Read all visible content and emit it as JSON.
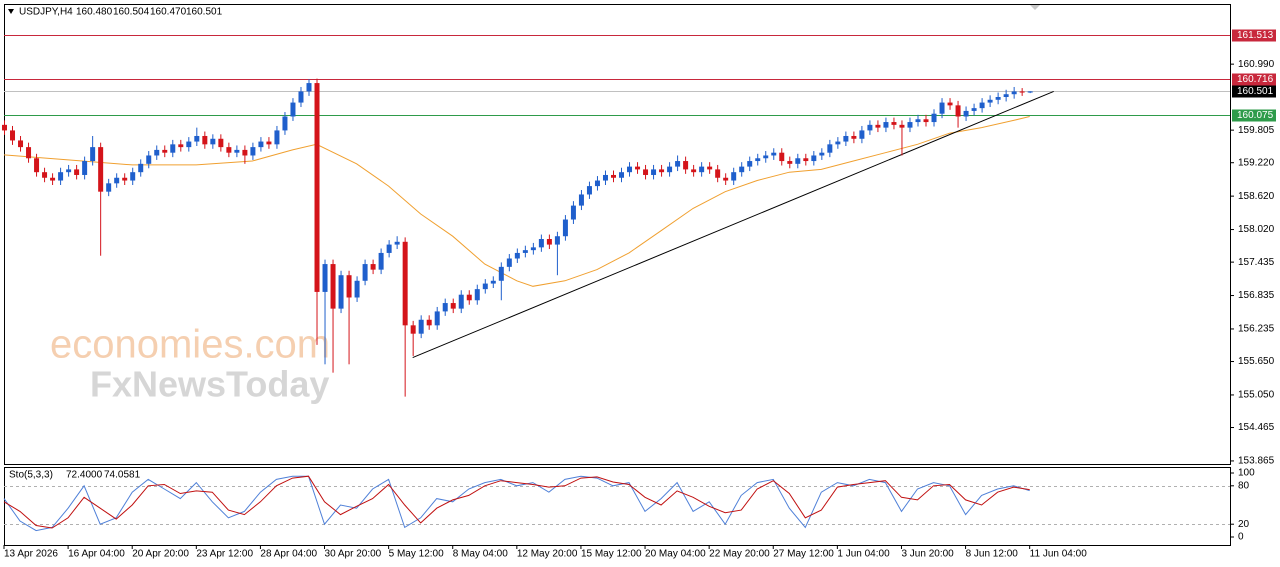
{
  "chart_data": [
    {
      "type": "candlestick",
      "title": "USDJPY,H4",
      "header_values": [
        "160.480",
        "160.504",
        "160.470",
        "160.501"
      ],
      "open": [
        159.9,
        159.8,
        159.62,
        159.5,
        159.3,
        159.05,
        158.95,
        158.9,
        159.05,
        159.1,
        159.0,
        159.25,
        159.5,
        158.7,
        158.85,
        158.95,
        158.9,
        159.05,
        159.2,
        159.35,
        159.45,
        159.4,
        159.55,
        159.5,
        159.6,
        159.7,
        159.55,
        159.65,
        159.5,
        159.4,
        159.45,
        159.35,
        159.5,
        159.6,
        159.55,
        159.8,
        160.05,
        160.3,
        160.5,
        160.65,
        156.9,
        157.4,
        156.6,
        157.2,
        156.8,
        157.1,
        157.4,
        157.3,
        157.6,
        157.75,
        157.8,
        156.3,
        156.15,
        156.4,
        156.3,
        156.55,
        156.7,
        156.6,
        156.85,
        156.75,
        156.95,
        157.05,
        157.1,
        157.35,
        157.5,
        157.6,
        157.65,
        157.7,
        157.85,
        157.75,
        157.9,
        158.2,
        158.45,
        158.65,
        158.8,
        158.9,
        159.0,
        158.95,
        159.05,
        159.15,
        159.1,
        159.0,
        159.1,
        159.05,
        159.15,
        159.25,
        159.1,
        159.05,
        159.15,
        159.1,
        158.95,
        158.9,
        159.05,
        159.15,
        159.25,
        159.3,
        159.35,
        159.4,
        159.25,
        159.2,
        159.3,
        159.25,
        159.35,
        159.4,
        159.55,
        159.6,
        159.7,
        159.65,
        159.8,
        159.9,
        159.85,
        159.95,
        159.9,
        159.85,
        159.95,
        160.0,
        159.95,
        160.1,
        160.3,
        160.25,
        160.05,
        160.15,
        160.2,
        160.3,
        160.35,
        160.4,
        160.45,
        160.5,
        160.48
      ],
      "high": [
        159.98,
        159.88,
        159.7,
        159.58,
        159.38,
        159.13,
        159.03,
        159.13,
        159.18,
        159.18,
        159.33,
        159.7,
        159.58,
        158.93,
        159.03,
        159.03,
        159.13,
        159.28,
        159.43,
        159.53,
        159.53,
        159.63,
        159.63,
        159.68,
        159.85,
        159.78,
        159.73,
        159.73,
        159.58,
        159.53,
        159.53,
        159.58,
        159.68,
        159.68,
        159.88,
        160.13,
        160.38,
        160.58,
        160.72,
        160.73,
        157.48,
        157.48,
        157.28,
        157.28,
        157.18,
        157.48,
        157.48,
        157.68,
        157.83,
        157.9,
        157.88,
        156.38,
        156.48,
        156.48,
        156.63,
        156.78,
        156.78,
        156.93,
        156.93,
        157.03,
        157.13,
        157.18,
        157.43,
        157.58,
        157.68,
        157.73,
        157.78,
        157.93,
        157.93,
        157.98,
        158.28,
        158.53,
        158.73,
        158.88,
        158.98,
        159.08,
        159.08,
        159.13,
        159.23,
        159.23,
        159.18,
        159.18,
        159.18,
        159.23,
        159.35,
        159.33,
        159.18,
        159.23,
        159.23,
        159.18,
        159.03,
        159.13,
        159.23,
        159.33,
        159.38,
        159.43,
        159.48,
        159.48,
        159.33,
        159.38,
        159.38,
        159.43,
        159.48,
        159.63,
        159.68,
        159.78,
        159.78,
        159.88,
        159.98,
        159.98,
        160.03,
        160.03,
        159.98,
        160.03,
        160.08,
        160.08,
        160.18,
        160.38,
        160.38,
        160.33,
        160.23,
        160.28,
        160.38,
        160.43,
        160.48,
        160.53,
        160.58,
        160.56,
        160.504
      ],
      "low": [
        159.72,
        159.54,
        159.42,
        159.22,
        158.97,
        158.87,
        158.82,
        158.82,
        158.97,
        158.92,
        158.92,
        159.17,
        157.55,
        158.62,
        158.77,
        158.82,
        158.82,
        158.97,
        159.12,
        159.27,
        159.32,
        159.32,
        159.42,
        159.42,
        159.52,
        159.47,
        159.47,
        159.42,
        159.32,
        159.32,
        159.2,
        159.27,
        159.42,
        159.47,
        159.47,
        159.72,
        159.97,
        160.22,
        160.42,
        155.95,
        155.6,
        155.45,
        156.52,
        155.6,
        156.72,
        157.02,
        157.22,
        157.22,
        157.52,
        157.67,
        155.02,
        155.75,
        156.07,
        156.22,
        156.22,
        156.47,
        156.52,
        156.52,
        156.67,
        156.67,
        156.87,
        156.97,
        156.75,
        157.27,
        157.42,
        157.52,
        157.57,
        157.62,
        157.67,
        157.2,
        157.82,
        158.12,
        158.37,
        158.57,
        158.72,
        158.82,
        158.87,
        158.87,
        158.97,
        159.02,
        158.92,
        158.92,
        158.97,
        158.97,
        159.07,
        159.02,
        158.97,
        158.97,
        159.02,
        158.87,
        158.82,
        158.82,
        158.97,
        159.07,
        159.17,
        159.22,
        159.27,
        159.17,
        159.12,
        159.12,
        159.17,
        159.17,
        159.27,
        159.32,
        159.47,
        159.52,
        159.57,
        159.57,
        159.72,
        159.77,
        159.77,
        159.82,
        159.35,
        159.77,
        159.87,
        159.87,
        159.87,
        160.02,
        160.17,
        159.85,
        159.97,
        160.07,
        160.12,
        160.22,
        160.27,
        160.32,
        160.37,
        160.42,
        160.47
      ],
      "close": [
        159.8,
        159.62,
        159.5,
        159.3,
        159.05,
        158.95,
        158.9,
        159.05,
        159.1,
        159.0,
        159.25,
        159.5,
        158.7,
        158.85,
        158.95,
        158.9,
        159.05,
        159.2,
        159.35,
        159.45,
        159.4,
        159.55,
        159.5,
        159.6,
        159.7,
        159.55,
        159.65,
        159.5,
        159.4,
        159.45,
        159.35,
        159.5,
        159.6,
        159.55,
        159.8,
        160.05,
        160.3,
        160.5,
        160.65,
        156.9,
        157.4,
        156.6,
        157.2,
        156.8,
        157.1,
        157.4,
        157.3,
        157.6,
        157.75,
        157.8,
        156.3,
        156.15,
        156.4,
        156.3,
        156.55,
        156.7,
        156.6,
        156.85,
        156.75,
        156.95,
        157.05,
        157.1,
        157.35,
        157.5,
        157.6,
        157.65,
        157.7,
        157.85,
        157.75,
        157.9,
        158.2,
        158.45,
        158.65,
        158.8,
        158.9,
        159.0,
        158.95,
        159.05,
        159.15,
        159.1,
        159.0,
        159.1,
        159.05,
        159.15,
        159.25,
        159.1,
        159.05,
        159.15,
        159.1,
        158.95,
        158.9,
        159.05,
        159.15,
        159.25,
        159.3,
        159.35,
        159.4,
        159.25,
        159.2,
        159.3,
        159.25,
        159.35,
        159.4,
        159.55,
        159.6,
        159.7,
        159.65,
        159.8,
        159.9,
        159.85,
        159.95,
        159.9,
        159.85,
        159.95,
        160.0,
        159.95,
        160.1,
        160.3,
        160.25,
        160.05,
        160.15,
        160.2,
        160.3,
        160.35,
        160.4,
        160.45,
        160.5,
        160.48,
        160.501
      ],
      "colors": {
        "up": "#1f5fcc",
        "down": "#d4141a"
      },
      "xlim": [
        0,
        153
      ],
      "ylim": [
        153.81,
        162.07
      ],
      "yticks": [
        {
          "value": 160.99,
          "label": "160.990"
        },
        159.805,
        {
          "value": 159.22,
          "label": "159.220"
        },
        {
          "value": 158.62,
          "label": "158.620"
        },
        {
          "value": 158.02,
          "label": "158.020"
        },
        157.435,
        156.835,
        156.235,
        {
          "value": 155.65,
          "label": "155.650"
        },
        {
          "value": 155.05,
          "label": "155.050"
        },
        154.465,
        153.865
      ],
      "xticks": [
        {
          "value": 0,
          "label": "13 Apr 2026"
        },
        {
          "value": 8,
          "label": "16 Apr 04:00"
        },
        {
          "value": 16,
          "label": "20 Apr 20:00"
        },
        {
          "value": 24,
          "label": "23 Apr 12:00"
        },
        {
          "value": 32,
          "label": "28 Apr 04:00"
        },
        {
          "value": 40,
          "label": "30 Apr 20:00"
        },
        {
          "value": 48,
          "label": "5 May 12:00"
        },
        {
          "value": 56,
          "label": "8 May 04:00"
        },
        {
          "value": 64,
          "label": "12 May 20:00"
        },
        {
          "value": 72,
          "label": "15 May 12:00"
        },
        {
          "value": 80,
          "label": "20 May 04:00"
        },
        {
          "value": 88,
          "label": "22 May 20:00"
        },
        {
          "value": 96,
          "label": "27 May 12:00"
        },
        {
          "value": 104,
          "label": "1 Jun 04:00"
        },
        {
          "value": 112,
          "label": "3 Jun 20:00"
        },
        {
          "value": 120,
          "label": "8 Jun 12:00"
        },
        {
          "value": 128,
          "label": "11 Jun 04:00"
        }
      ],
      "hlines": [
        {
          "value": 161.513,
          "color": "#c8283c",
          "tag_color": "#c8283c"
        },
        {
          "value": 160.716,
          "color": "#c8283c",
          "tag_color": "#c8283c"
        },
        {
          "value": 160.501,
          "color": "#c0c0c0",
          "tag_color": "#000000"
        },
        {
          "value": 160.075,
          "color": "#2e9b4a",
          "tag_color": "#2e9b4a"
        }
      ],
      "overlays": [
        {
          "color": "#f0a030",
          "x": [
            0,
            8,
            16,
            24,
            31,
            36,
            39,
            44,
            48,
            52,
            56,
            60,
            64,
            66,
            70,
            74,
            78,
            82,
            86,
            90,
            94,
            98,
            102,
            106,
            110,
            114,
            118,
            122,
            126,
            128
          ],
          "values": [
            159.36,
            159.27,
            159.18,
            159.18,
            159.25,
            159.45,
            159.55,
            159.2,
            158.8,
            158.3,
            157.9,
            157.4,
            157.1,
            157.0,
            157.1,
            157.3,
            157.6,
            158.0,
            158.4,
            158.7,
            158.9,
            159.05,
            159.1,
            159.25,
            159.4,
            159.55,
            159.75,
            159.85,
            159.98,
            160.05
          ]
        },
        {
          "color": "#000000",
          "x": [
            51,
            131
          ],
          "values": [
            155.72,
            160.5
          ]
        }
      ],
      "watermark": [
        "economies.com",
        "FxNewsToday"
      ]
    },
    {
      "type": "line",
      "title": "Sto(5,3,3)",
      "header_values": [
        "72.4000",
        "74.0581"
      ],
      "xlim": [
        0,
        153
      ],
      "ylim": [
        -12.5,
        109.4
      ],
      "yticks": [
        100,
        80,
        20,
        0
      ],
      "levels": [
        80,
        20
      ],
      "series": [
        {
          "color": "#4f80d8",
          "x": [
            0,
            2,
            4,
            6,
            8,
            10,
            12,
            14,
            16,
            18,
            20,
            22,
            24,
            26,
            28,
            30,
            32,
            34,
            36,
            38,
            40,
            42,
            44,
            46,
            48,
            50,
            52,
            54,
            56,
            58,
            60,
            62,
            64,
            66,
            68,
            70,
            72,
            74,
            76,
            78,
            80,
            82,
            84,
            86,
            88,
            90,
            92,
            94,
            96,
            98,
            100,
            102,
            104,
            106,
            108,
            110,
            112,
            114,
            116,
            118,
            120,
            122,
            124,
            126,
            128
          ],
          "values": [
            60,
            25,
            10,
            15,
            45,
            80,
            20,
            30,
            70,
            90,
            75,
            60,
            85,
            55,
            30,
            40,
            70,
            90,
            95,
            95,
            20,
            50,
            45,
            75,
            90,
            15,
            30,
            60,
            55,
            75,
            85,
            90,
            80,
            85,
            70,
            90,
            95,
            92,
            80,
            85,
            40,
            60,
            85,
            40,
            55,
            20,
            65,
            85,
            90,
            45,
            15,
            70,
            85,
            80,
            90,
            85,
            40,
            75,
            85,
            80,
            35,
            65,
            75,
            80,
            72.4
          ]
        },
        {
          "color": "#c01010",
          "x": [
            0,
            2,
            4,
            6,
            8,
            10,
            12,
            14,
            16,
            18,
            20,
            22,
            24,
            26,
            28,
            30,
            32,
            34,
            36,
            38,
            40,
            42,
            44,
            46,
            48,
            50,
            52,
            54,
            56,
            58,
            60,
            62,
            64,
            66,
            68,
            70,
            72,
            74,
            76,
            78,
            80,
            82,
            84,
            86,
            88,
            90,
            92,
            94,
            96,
            98,
            100,
            102,
            104,
            106,
            108,
            110,
            112,
            114,
            116,
            118,
            120,
            122,
            124,
            126,
            128
          ],
          "values": [
            55,
            40,
            18,
            14,
            30,
            62,
            45,
            28,
            50,
            80,
            82,
            68,
            72,
            70,
            42,
            35,
            55,
            80,
            92,
            95,
            55,
            35,
            48,
            60,
            82,
            50,
            22,
            45,
            58,
            65,
            80,
            88,
            85,
            82,
            78,
            80,
            92,
            94,
            86,
            82,
            62,
            50,
            72,
            62,
            48,
            38,
            42,
            75,
            88,
            68,
            30,
            42,
            78,
            82,
            85,
            88,
            62,
            58,
            80,
            82,
            58,
            50,
            70,
            78,
            74.0581
          ]
        }
      ]
    }
  ]
}
